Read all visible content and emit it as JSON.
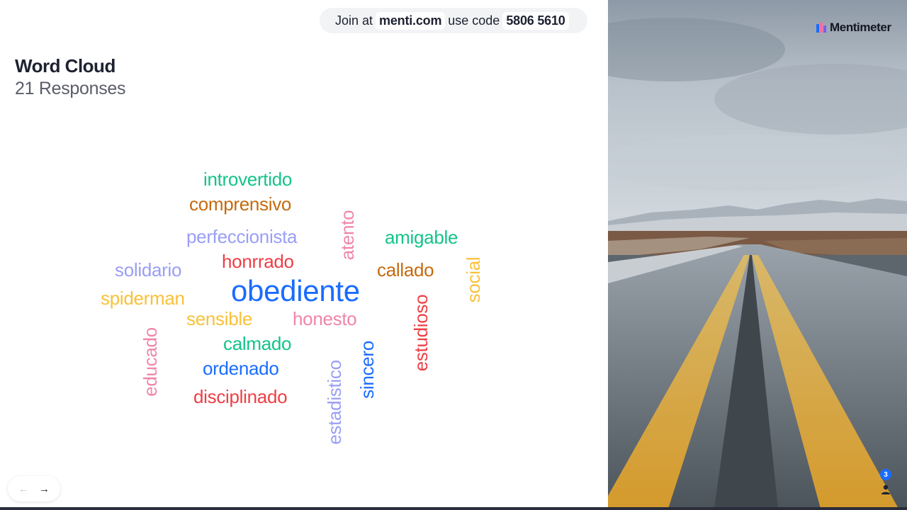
{
  "join": {
    "prefix": "Join at",
    "site": "menti.com",
    "middle": "use code",
    "code": "5806 5610"
  },
  "slide": {
    "title": "Word Cloud",
    "responses": "21 Responses"
  },
  "brand": {
    "name": "Mentimeter",
    "logo_icon": "mentimeter-logo-icon"
  },
  "audience": {
    "count": "3",
    "icon": "person-icon"
  },
  "navigation": {
    "prev_icon": "arrow-left-icon",
    "next_icon": "arrow-right-icon"
  },
  "colors": {
    "green": "#14c48a",
    "orange": "#c66a0e",
    "lavender": "#9a9ef5",
    "pink": "#ef86a9",
    "red": "#ee3e45",
    "blue": "#196cff",
    "yellow": "#f9c13a",
    "badge": "#196cff"
  },
  "word_cloud": [
    {
      "text": "introvertido",
      "color": "green",
      "orientation": "horizontal"
    },
    {
      "text": "comprensivo",
      "color": "orange",
      "orientation": "horizontal"
    },
    {
      "text": "perfeccionista",
      "color": "lavender",
      "orientation": "horizontal"
    },
    {
      "text": "atento",
      "color": "pink",
      "orientation": "vertical"
    },
    {
      "text": "amigable",
      "color": "green",
      "orientation": "horizontal"
    },
    {
      "text": "honrrado",
      "color": "red",
      "orientation": "horizontal"
    },
    {
      "text": "solidario",
      "color": "lavender",
      "orientation": "horizontal"
    },
    {
      "text": "callado",
      "color": "orange",
      "orientation": "horizontal"
    },
    {
      "text": "social",
      "color": "yellow",
      "orientation": "vertical"
    },
    {
      "text": "obediente",
      "color": "blue",
      "orientation": "horizontal"
    },
    {
      "text": "spiderman",
      "color": "yellow",
      "orientation": "horizontal"
    },
    {
      "text": "sensible",
      "color": "yellow",
      "orientation": "horizontal"
    },
    {
      "text": "honesto",
      "color": "pink",
      "orientation": "horizontal"
    },
    {
      "text": "estudioso",
      "color": "red",
      "orientation": "vertical"
    },
    {
      "text": "educado",
      "color": "pink",
      "orientation": "vertical"
    },
    {
      "text": "calmado",
      "color": "green",
      "orientation": "horizontal"
    },
    {
      "text": "ordenado",
      "color": "blue",
      "orientation": "horizontal"
    },
    {
      "text": "sincero",
      "color": "blue",
      "orientation": "vertical"
    },
    {
      "text": "estadistico",
      "color": "lavender",
      "orientation": "vertical"
    },
    {
      "text": "disciplinado",
      "color": "red",
      "orientation": "horizontal"
    }
  ]
}
